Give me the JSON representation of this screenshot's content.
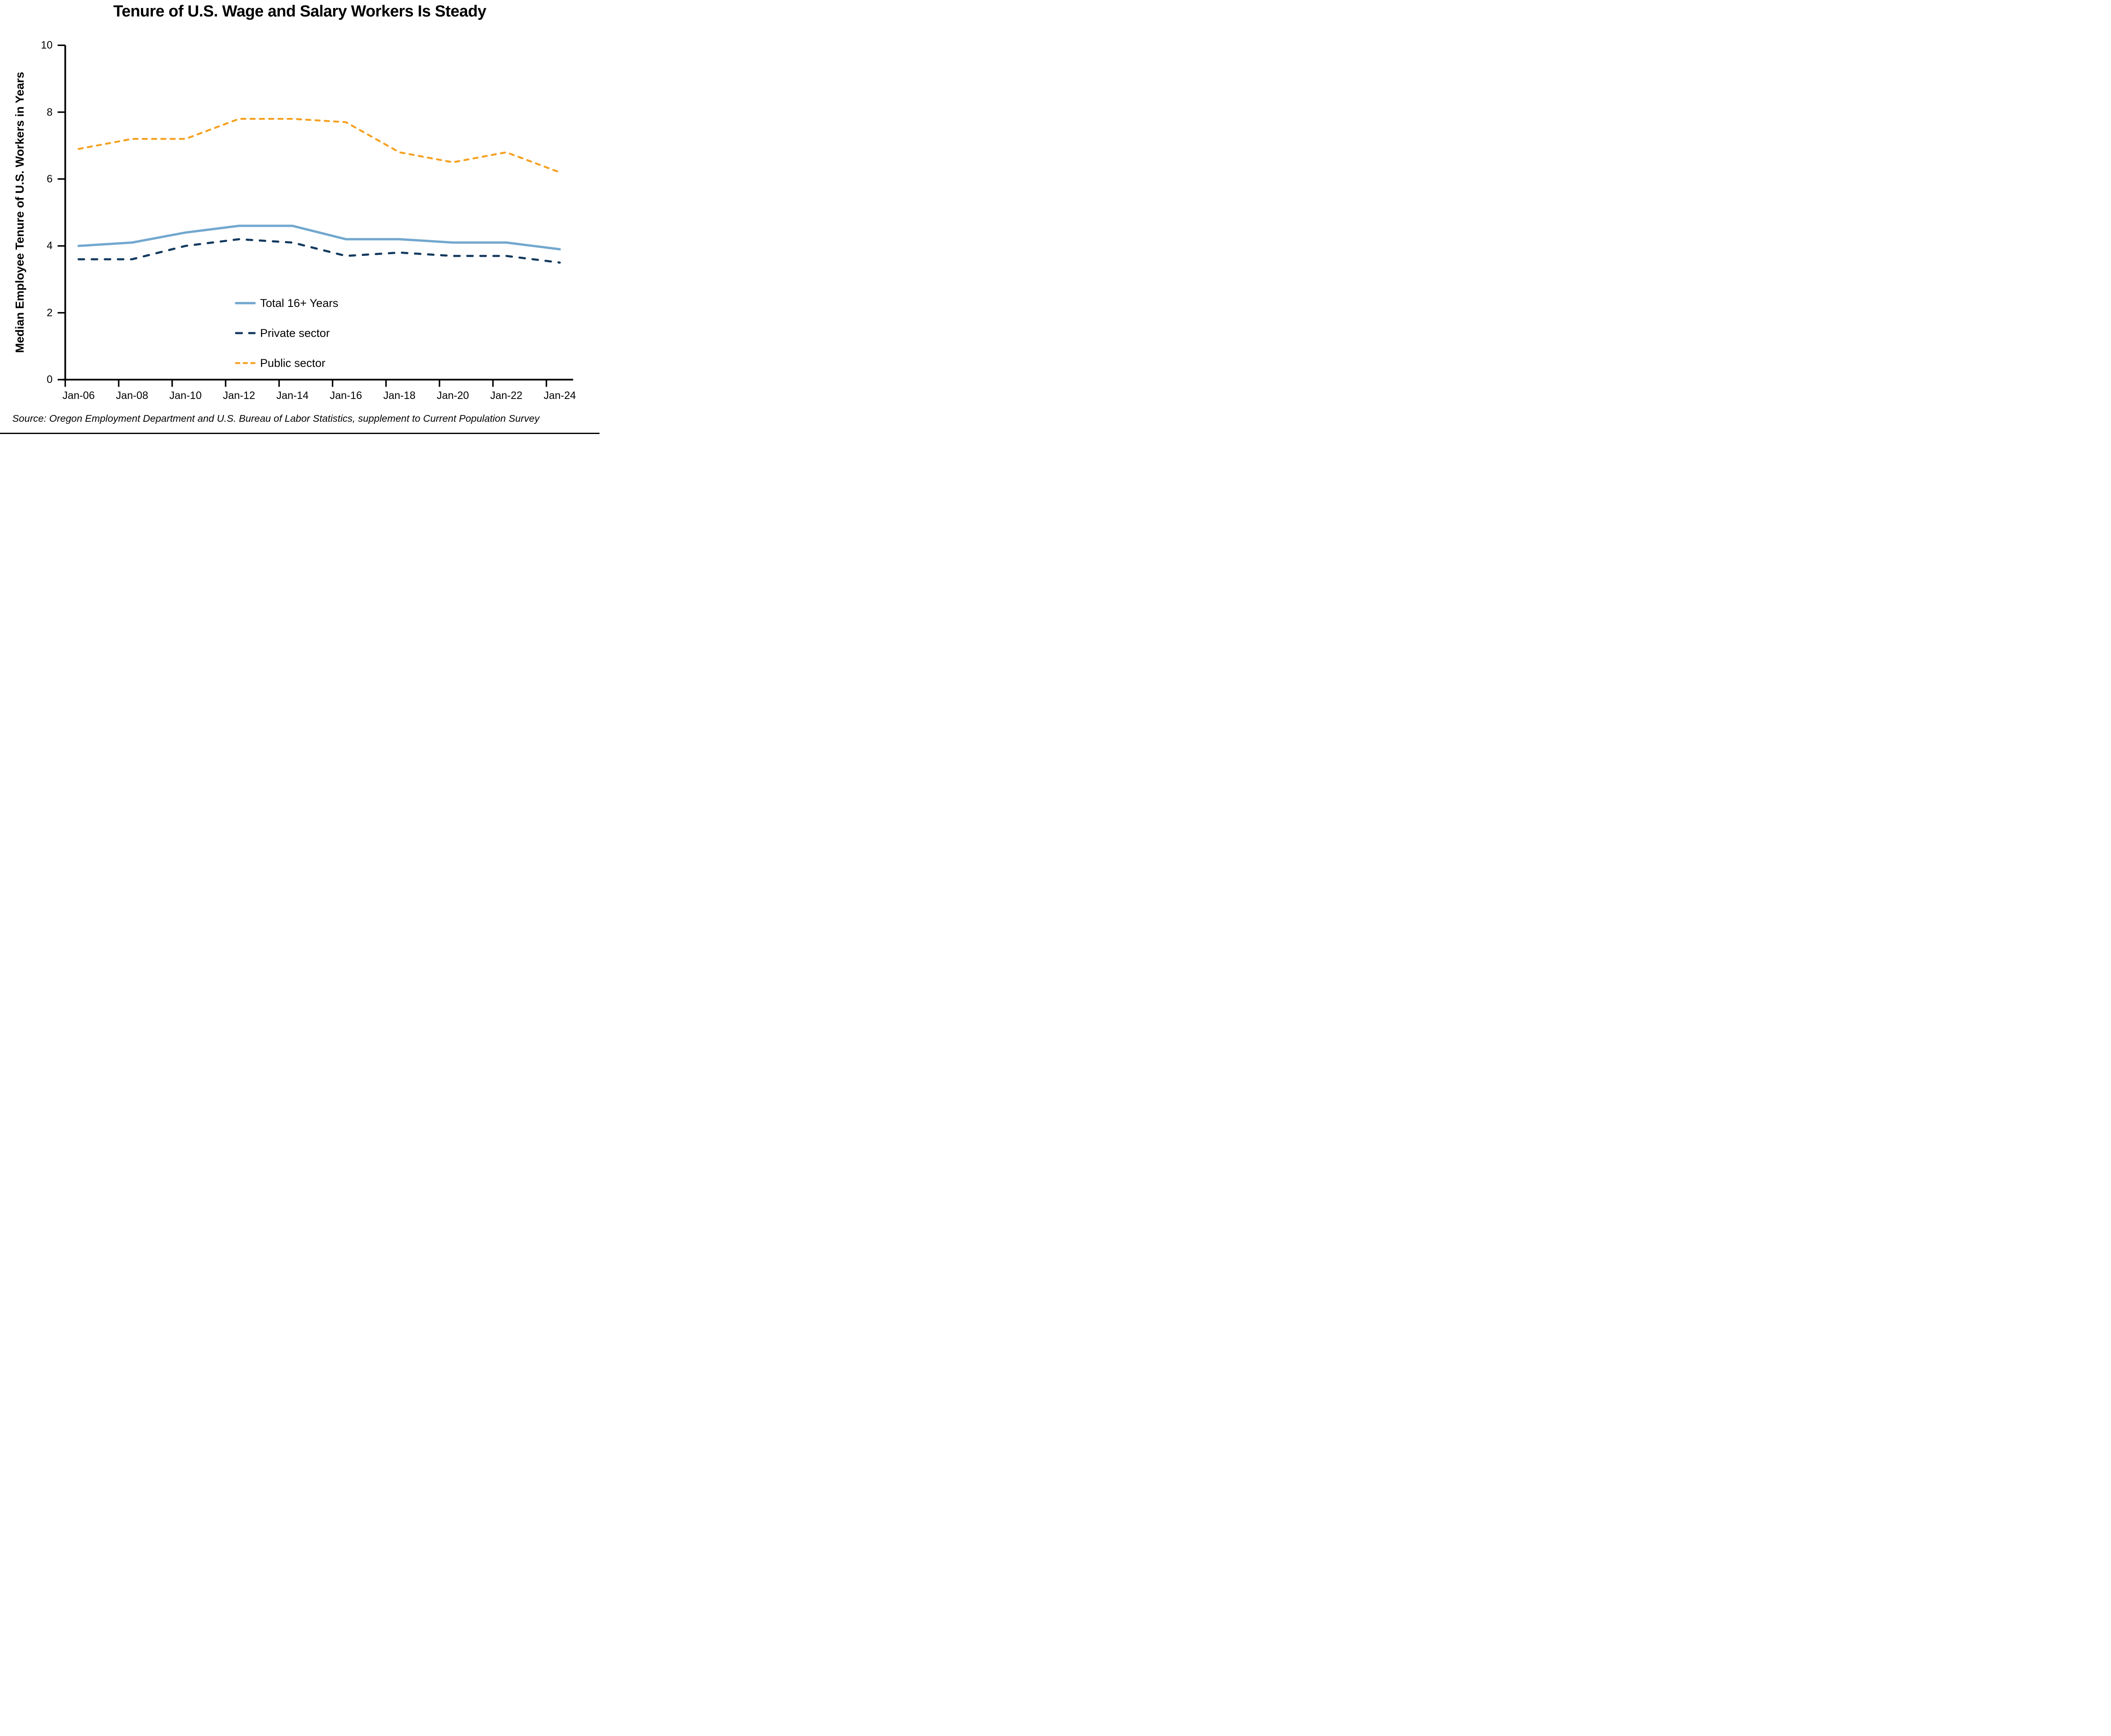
{
  "source": "Source: Oregon Employment Department and U.S. Bureau of Labor Statistics, supplement to Current Population Survey",
  "chart_data": {
    "type": "line",
    "title": "Tenure of U.S. Wage and Salary Workers Is Steady",
    "xlabel": "",
    "ylabel": "Median Employee Tenure of U.S. Workers in Years",
    "ylim": [
      0,
      10
    ],
    "yticks": [
      0,
      2,
      4,
      6,
      8,
      10
    ],
    "grid": false,
    "legend_position": "inside-lower-middle",
    "categories": [
      "Jan-06",
      "Jan-08",
      "Jan-10",
      "Jan-12",
      "Jan-14",
      "Jan-16",
      "Jan-18",
      "Jan-20",
      "Jan-22",
      "Jan-24"
    ],
    "series": [
      {
        "name": "Total 16+ Years",
        "style": "solid",
        "color": "#72A8CE",
        "values": [
          4.0,
          4.1,
          4.4,
          4.6,
          4.6,
          4.2,
          4.2,
          4.1,
          4.1,
          3.9
        ]
      },
      {
        "name": "Private sector",
        "style": "dashed-long",
        "color": "#143A5E",
        "values": [
          3.6,
          3.6,
          4.0,
          4.2,
          4.1,
          3.7,
          3.8,
          3.7,
          3.7,
          3.5
        ]
      },
      {
        "name": "Public sector",
        "style": "dashed-short",
        "color": "#F5A01E",
        "values": [
          6.9,
          7.2,
          7.2,
          7.8,
          7.8,
          7.7,
          6.8,
          6.5,
          6.8,
          6.2
        ]
      }
    ]
  }
}
